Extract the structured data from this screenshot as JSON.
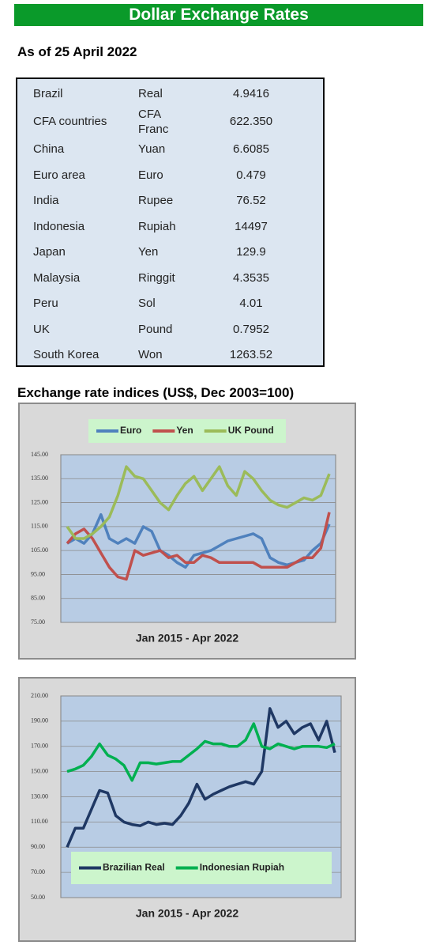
{
  "header": {
    "title": "Dollar Exchange Rates",
    "subtitle": "As of 25 April 2022"
  },
  "table": {
    "rows": [
      [
        "Brazil",
        "Real",
        "4.9416"
      ],
      [
        "CFA countries",
        "CFA Franc",
        "622.350"
      ],
      [
        "China",
        "Yuan",
        "6.6085"
      ],
      [
        "Euro area",
        "Euro",
        "0.479"
      ],
      [
        "India",
        "Rupee",
        "76.52"
      ],
      [
        "Indonesia",
        "Rupiah",
        "14497"
      ],
      [
        "Japan",
        "Yen",
        "129.9"
      ],
      [
        "Malaysia",
        "Ringgit",
        "4.3535"
      ],
      [
        "Peru",
        "Sol",
        "4.01"
      ],
      [
        "UK",
        "Pound",
        "0.7952"
      ],
      [
        "South Korea",
        "Won",
        "1263.52"
      ]
    ]
  },
  "section_title": "Exchange rate indices (US$, Dec 2003=100)",
  "chart_data": [
    {
      "type": "line",
      "x_label": "Jan 2015 - Apr 2022",
      "ylim": [
        75,
        145
      ],
      "yticks": [
        {
          "value": 75,
          "label": "75.00"
        },
        {
          "value": 85,
          "label": "85.00"
        },
        {
          "value": 95,
          "label": "95.00"
        },
        {
          "value": 105,
          "label": "105.00"
        },
        {
          "value": 115,
          "label": "115.00"
        },
        {
          "value": 125,
          "label": "125.00"
        },
        {
          "value": 135,
          "label": "135.00"
        },
        {
          "value": 145,
          "label": "145.00"
        }
      ],
      "grid": true,
      "legend": "top",
      "series": [
        {
          "name": "Euro",
          "color": "#4f81bd",
          "values": [
            108,
            110,
            108,
            112,
            120,
            110,
            108,
            110,
            108,
            115,
            113,
            105,
            103,
            100,
            98,
            103,
            104,
            105,
            107,
            109,
            110,
            111,
            112,
            110,
            102,
            100,
            99,
            100,
            101,
            105,
            108,
            116
          ]
        },
        {
          "name": "Yen",
          "color": "#c0504d",
          "values": [
            108,
            112,
            114,
            110,
            104,
            98,
            94,
            93,
            105,
            103,
            104,
            105,
            102,
            103,
            100,
            100,
            103,
            102,
            100,
            100,
            100,
            100,
            100,
            98,
            98,
            98,
            98,
            100,
            102,
            102,
            106,
            121
          ]
        },
        {
          "name": "UK Pound",
          "color": "#9bbb59",
          "values": [
            115,
            110,
            110,
            112,
            115,
            119,
            128,
            140,
            136,
            135,
            130,
            125,
            122,
            128,
            133,
            136,
            130,
            135,
            140,
            132,
            128,
            138,
            135,
            130,
            126,
            124,
            123,
            125,
            127,
            126,
            128,
            137
          ]
        }
      ]
    },
    {
      "type": "line",
      "x_label": "Jan 2015 - Apr 2022",
      "ylim": [
        50,
        210
      ],
      "yticks": [
        {
          "value": 50,
          "label": "50.00"
        },
        {
          "value": 70,
          "label": "70.00"
        },
        {
          "value": 90,
          "label": "90.00"
        },
        {
          "value": 110,
          "label": "110.00"
        },
        {
          "value": 130,
          "label": "130.00"
        },
        {
          "value": 150,
          "label": "150.00"
        },
        {
          "value": 170,
          "label": "170.00"
        },
        {
          "value": 190,
          "label": "190.00"
        },
        {
          "value": 210,
          "label": "210.00"
        }
      ],
      "grid": true,
      "legend": "bottom",
      "series": [
        {
          "name": "Brazilian Real",
          "color": "#1f3864",
          "values": [
            90,
            105,
            105,
            120,
            135,
            133,
            115,
            110,
            108,
            107,
            110,
            108,
            109,
            108,
            115,
            125,
            140,
            128,
            132,
            135,
            138,
            140,
            142,
            140,
            150,
            200,
            185,
            190,
            180,
            185,
            188,
            175,
            190,
            165
          ]
        },
        {
          "name": "Indonesian Rupiah",
          "color": "#00b050",
          "values": [
            150,
            152,
            155,
            162,
            172,
            163,
            160,
            155,
            143,
            157,
            157,
            156,
            157,
            158,
            158,
            163,
            168,
            174,
            172,
            172,
            170,
            170,
            175,
            188,
            170,
            168,
            172,
            170,
            168,
            170,
            170,
            170,
            169,
            172
          ]
        }
      ]
    }
  ]
}
